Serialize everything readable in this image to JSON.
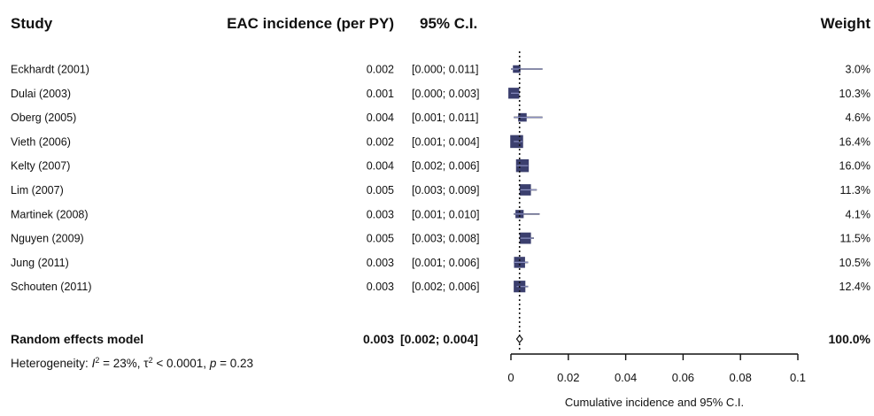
{
  "headers": {
    "study": "Study",
    "incidence": "EAC incidence (per PY)",
    "ci": "95% C.I.",
    "weight": "Weight"
  },
  "chart_data": {
    "type": "forest",
    "xlabel": "Cumulative incidence and 95% C.I.",
    "xlim": [
      0,
      0.1
    ],
    "xticks": [
      0,
      0.02,
      0.04,
      0.06,
      0.08,
      0.1
    ],
    "xtick_labels": [
      "0",
      "0.02",
      "0.04",
      "0.06",
      "0.08",
      "0.1"
    ],
    "reference_line": 0.003,
    "studies": [
      {
        "study": "Eckhardt (2001)",
        "est": 0.002,
        "lo": 0.0,
        "hi": 0.011,
        "est_text": "0.002",
        "ci_text": "[0.000; 0.011]",
        "weight": 3.0,
        "weight_text": "3.0%"
      },
      {
        "study": "Dulai (2003)",
        "est": 0.001,
        "lo": 0.0,
        "hi": 0.003,
        "est_text": "0.001",
        "ci_text": "[0.000; 0.003]",
        "weight": 10.3,
        "weight_text": "10.3%"
      },
      {
        "study": "Oberg (2005)",
        "est": 0.004,
        "lo": 0.001,
        "hi": 0.011,
        "est_text": "0.004",
        "ci_text": "[0.001; 0.011]",
        "weight": 4.6,
        "weight_text": "4.6%"
      },
      {
        "study": "Vieth (2006)",
        "est": 0.002,
        "lo": 0.001,
        "hi": 0.004,
        "est_text": "0.002",
        "ci_text": "[0.001; 0.004]",
        "weight": 16.4,
        "weight_text": "16.4%"
      },
      {
        "study": "Kelty (2007)",
        "est": 0.004,
        "lo": 0.002,
        "hi": 0.006,
        "est_text": "0.004",
        "ci_text": "[0.002; 0.006]",
        "weight": 16.0,
        "weight_text": "16.0%"
      },
      {
        "study": "Lim (2007)",
        "est": 0.005,
        "lo": 0.003,
        "hi": 0.009,
        "est_text": "0.005",
        "ci_text": "[0.003; 0.009]",
        "weight": 11.3,
        "weight_text": "11.3%"
      },
      {
        "study": "Martinek (2008)",
        "est": 0.003,
        "lo": 0.001,
        "hi": 0.01,
        "est_text": "0.003",
        "ci_text": "[0.001; 0.010]",
        "weight": 4.1,
        "weight_text": "4.1%"
      },
      {
        "study": "Nguyen (2009)",
        "est": 0.005,
        "lo": 0.003,
        "hi": 0.008,
        "est_text": "0.005",
        "ci_text": "[0.003; 0.008]",
        "weight": 11.5,
        "weight_text": "11.5%"
      },
      {
        "study": "Jung (2011)",
        "est": 0.003,
        "lo": 0.001,
        "hi": 0.006,
        "est_text": "0.003",
        "ci_text": "[0.001; 0.006]",
        "weight": 10.5,
        "weight_text": "10.5%"
      },
      {
        "study": "Schouten (2011)",
        "est": 0.003,
        "lo": 0.002,
        "hi": 0.006,
        "est_text": "0.003",
        "ci_text": "[0.002; 0.006]",
        "weight": 12.4,
        "weight_text": "12.4%"
      }
    ],
    "summary": {
      "label": "Random effects model",
      "est": 0.003,
      "lo": 0.002,
      "hi": 0.004,
      "est_text": "0.003",
      "ci_text": "[0.002; 0.004]",
      "weight_text": "100.0%"
    },
    "heterogeneity": {
      "prefix": "Heterogeneity: ",
      "i2_symbol": "I",
      "i2_sup": "2",
      "i2_value": " = 23%, ",
      "tau_symbol": "τ",
      "tau_sup": "2",
      "tau_value": " < 0.0001, ",
      "p_symbol": "p",
      "p_value": " = 0.23"
    },
    "colors": {
      "box": "#3b3f6e",
      "box_highlight": "#8a8fc0",
      "line": "#111111"
    }
  }
}
